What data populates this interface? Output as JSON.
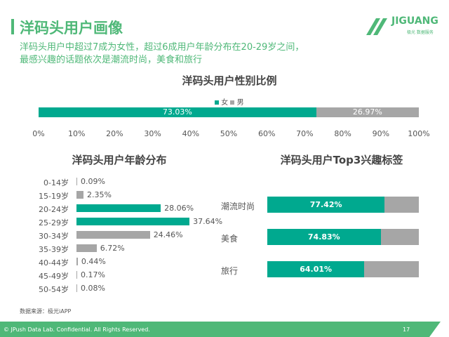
{
  "header": {
    "title": "洋码头用户画像",
    "subtitle_line1": "洋码头用户中超过7成为女性，超过6成用户年龄分布在20-29岁之间，",
    "subtitle_line2": "最感兴趣的话题依次是潮流时尚，美食和旅行",
    "logo_text": "JIGUANG",
    "logo_sub": "极光 数据服务"
  },
  "colors": {
    "brand": "#4fb878",
    "teal": "#00a98f",
    "gray": "#a6a6a6"
  },
  "chart_data": [
    {
      "type": "bar",
      "orientation": "horizontal",
      "stacked": true,
      "title": "洋码头用户性别比例",
      "categories": [
        ""
      ],
      "series": [
        {
          "name": "女",
          "values": [
            73.03
          ],
          "label": "73.03%"
        },
        {
          "name": "男",
          "values": [
            26.97
          ],
          "label": "26.97%"
        }
      ],
      "xlim": [
        0,
        100
      ],
      "xticks": [
        "0%",
        "10%",
        "20%",
        "30%",
        "40%",
        "50%",
        "60%",
        "70%",
        "80%",
        "90%",
        "100%"
      ],
      "legend": "top"
    },
    {
      "type": "bar",
      "orientation": "horizontal",
      "title": "洋码头用户年龄分布",
      "categories": [
        "0-14岁",
        "15-19岁",
        "20-24岁",
        "25-29岁",
        "30-34岁",
        "35-39岁",
        "40-44岁",
        "45-49岁",
        "50-54岁"
      ],
      "values": [
        0.09,
        2.35,
        28.06,
        37.64,
        24.46,
        6.72,
        0.44,
        0.17,
        0.08
      ],
      "labels": [
        "0.09%",
        "2.35%",
        "28.06%",
        "37.64%",
        "24.46%",
        "6.72%",
        "0.44%",
        "0.17%",
        "0.08%"
      ],
      "highlight": [
        "20-24岁",
        "25-29岁"
      ]
    },
    {
      "type": "bar",
      "orientation": "horizontal",
      "stacked": true,
      "title": "洋码头用户Top3兴趣标签",
      "categories": [
        "潮流时尚",
        "美食",
        "旅行"
      ],
      "values": [
        77.42,
        74.83,
        64.01
      ],
      "labels": [
        "77.42%",
        "74.83%",
        "64.01%"
      ],
      "xlim": [
        0,
        100
      ]
    }
  ],
  "footer": {
    "source": "数据来源：极光iAPP",
    "copyright": "© JPush Data Lab. Confidential. All Rights Reserved.",
    "page": "17"
  }
}
